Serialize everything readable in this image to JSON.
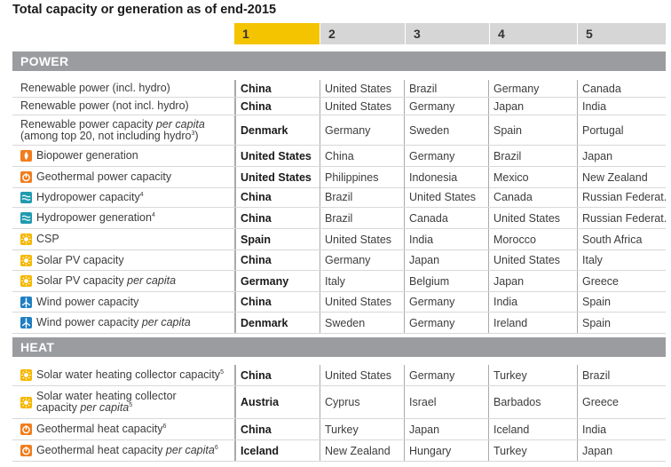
{
  "title": "Total capacity or generation as of end-2015",
  "rank_headers": [
    "1",
    "2",
    "3",
    "4",
    "5"
  ],
  "colors": {
    "rank1": "#f5c400",
    "header_gray": "#d6d6d6",
    "band": "#9a9ca0",
    "orange_icon": "#f07d1e",
    "yellow_icon": "#f5b700",
    "teal_icon": "#1f9bb0",
    "blue_icon": "#1f7fc4"
  },
  "sections": [
    {
      "name": "POWER",
      "rows": [
        {
          "label": "Renewable power (incl. hydro)",
          "icon": "",
          "cells": [
            "China",
            "United States",
            "Brazil",
            "Germany",
            "Canada"
          ]
        },
        {
          "label": "Renewable power (not incl. hydro)",
          "icon": "",
          "cells": [
            "China",
            "United States",
            "Germany",
            "Japan",
            "India"
          ]
        },
        {
          "label": "Renewable power capacity ",
          "label_em": "per capita",
          "label2": "(among top 20, not including hydro",
          "sup": "3",
          "label2_end": ")",
          "icon": "",
          "cells": [
            "Denmark",
            "Germany",
            "Sweden",
            "Spain",
            "Portugal"
          ]
        },
        {
          "label": "Biopower generation",
          "icon": "biopower-icon",
          "cells": [
            "United States",
            "China",
            "Germany",
            "Brazil",
            "Japan"
          ]
        },
        {
          "label": "Geothermal power capacity",
          "icon": "geothermal-icon",
          "cells": [
            "United States",
            "Philippines",
            "Indonesia",
            "Mexico",
            "New Zealand"
          ]
        },
        {
          "label": "Hydropower capacity",
          "sup": "4",
          "icon": "hydropower-icon",
          "cells": [
            "China",
            "Brazil",
            "United States",
            "Canada",
            "Russian Federat."
          ]
        },
        {
          "label": "Hydropower generation",
          "sup": "4",
          "icon": "hydropower-icon",
          "cells": [
            "China",
            "Brazil",
            "Canada",
            "United States",
            "Russian Federat."
          ]
        },
        {
          "label": "CSP",
          "icon": "solar-icon",
          "cells": [
            "Spain",
            "United States",
            "India",
            "Morocco",
            "South Africa"
          ]
        },
        {
          "label": "Solar PV capacity",
          "icon": "solar-icon",
          "cells": [
            "China",
            "Germany",
            "Japan",
            "United States",
            "Italy"
          ]
        },
        {
          "label": "Solar PV capacity ",
          "label_em": "per capita",
          "icon": "solar-icon",
          "cells": [
            "Germany",
            "Italy",
            "Belgium",
            "Japan",
            "Greece"
          ]
        },
        {
          "label": "Wind power capacity",
          "icon": "wind-icon",
          "cells": [
            "China",
            "United States",
            "Germany",
            "India",
            "Spain"
          ]
        },
        {
          "label": "Wind power capacity ",
          "label_em": "per capita",
          "icon": "wind-icon",
          "cells": [
            "Denmark",
            "Sweden",
            "Germany",
            "Ireland",
            "Spain"
          ]
        }
      ]
    },
    {
      "name": "HEAT",
      "rows": [
        {
          "label": "Solar water heating collector capacity",
          "sup": "5",
          "icon": "solar-icon",
          "cells": [
            "China",
            "United States",
            "Germany",
            "Turkey",
            "Brazil"
          ]
        },
        {
          "label": "Solar water heating collector",
          "label2": "capacity ",
          "label2_em": "per capita",
          "sup": "5",
          "icon": "solar-icon",
          "cells": [
            "Austria",
            "Cyprus",
            "Israel",
            "Barbados",
            "Greece"
          ]
        },
        {
          "label": "Geothermal heat capacity",
          "sup": "6",
          "icon": "geothermal-icon",
          "cells": [
            "China",
            "Turkey",
            "Japan",
            "Iceland",
            "India"
          ]
        },
        {
          "label": "Geothermal heat capacity ",
          "label_em": "per capita",
          "sup": "6",
          "icon": "geothermal-icon",
          "cells": [
            "Iceland",
            "New Zealand",
            "Hungary",
            "Turkey",
            "Japan"
          ]
        }
      ]
    }
  ]
}
